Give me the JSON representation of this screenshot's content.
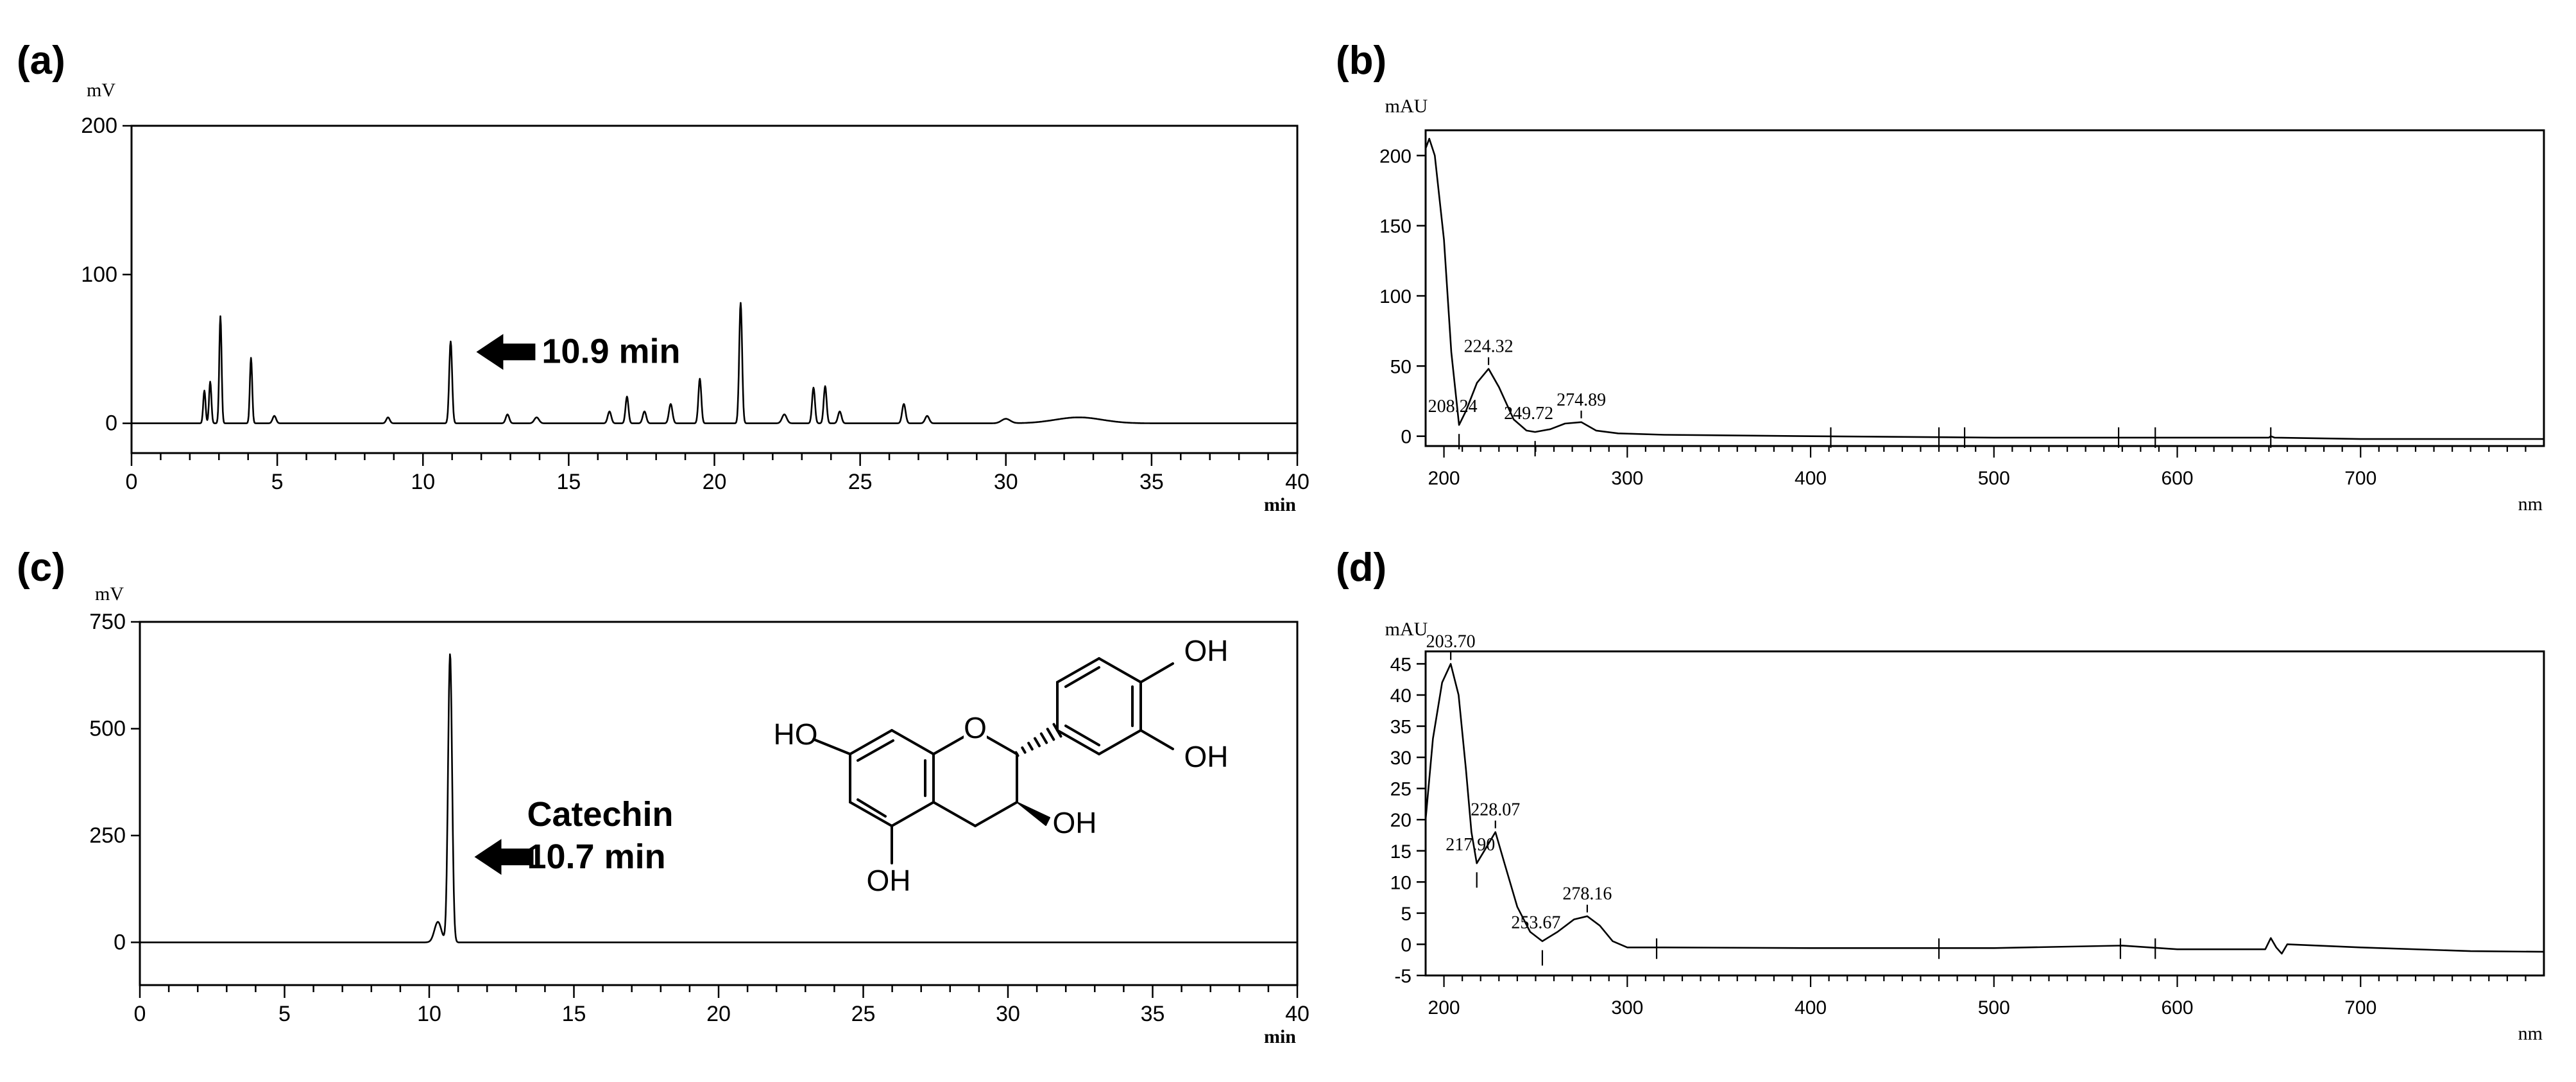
{
  "panels": [
    {
      "id": "a",
      "label": "(a)",
      "type": "line",
      "xlabel": "min",
      "ylabel": "mV",
      "xlim": [
        0,
        40
      ],
      "ylim": [
        -20,
        200
      ],
      "xticks": [
        0,
        5,
        10,
        15,
        20,
        25,
        30,
        35,
        40
      ],
      "yticks": [
        0,
        100,
        200
      ],
      "baseline": 0,
      "peaks": [
        {
          "x": 2.5,
          "y": 22,
          "w": 0.04
        },
        {
          "x": 2.7,
          "y": 28,
          "w": 0.04
        },
        {
          "x": 3.05,
          "y": 72,
          "w": 0.04
        },
        {
          "x": 4.1,
          "y": 44,
          "w": 0.04
        },
        {
          "x": 4.9,
          "y": 5,
          "w": 0.06
        },
        {
          "x": 8.8,
          "y": 4,
          "w": 0.06
        },
        {
          "x": 10.95,
          "y": 55,
          "w": 0.05
        },
        {
          "x": 12.9,
          "y": 6,
          "w": 0.06
        },
        {
          "x": 13.9,
          "y": 4,
          "w": 0.08
        },
        {
          "x": 16.4,
          "y": 8,
          "w": 0.06
        },
        {
          "x": 17.0,
          "y": 18,
          "w": 0.05
        },
        {
          "x": 17.6,
          "y": 8,
          "w": 0.06
        },
        {
          "x": 18.5,
          "y": 13,
          "w": 0.06
        },
        {
          "x": 19.5,
          "y": 30,
          "w": 0.05
        },
        {
          "x": 20.9,
          "y": 81,
          "w": 0.05
        },
        {
          "x": 22.4,
          "y": 6,
          "w": 0.08
        },
        {
          "x": 23.4,
          "y": 24,
          "w": 0.05
        },
        {
          "x": 23.8,
          "y": 25,
          "w": 0.05
        },
        {
          "x": 24.3,
          "y": 8,
          "w": 0.06
        },
        {
          "x": 26.5,
          "y": 13,
          "w": 0.06
        },
        {
          "x": 27.3,
          "y": 5,
          "w": 0.07
        },
        {
          "x": 30.0,
          "y": 3,
          "w": 0.15
        },
        {
          "x": 32.5,
          "y": 4,
          "w": 0.8
        }
      ],
      "annotation": {
        "text": "10.9 min",
        "x": 10.95,
        "y": 48
      }
    },
    {
      "id": "b",
      "label": "(b)",
      "type": "line",
      "xlabel": "nm",
      "ylabel": "mAU",
      "xlim": [
        190,
        800
      ],
      "ylim": [
        -7,
        218
      ],
      "xticks": [
        200,
        300,
        400,
        500,
        600,
        700
      ],
      "yticks": [
        0,
        50,
        100,
        150,
        200
      ],
      "points": [
        [
          190,
          205
        ],
        [
          192,
          212
        ],
        [
          195,
          200
        ],
        [
          200,
          140
        ],
        [
          204,
          60
        ],
        [
          208.24,
          8
        ],
        [
          212,
          18
        ],
        [
          218,
          38
        ],
        [
          224.32,
          48
        ],
        [
          230,
          35
        ],
        [
          238,
          12
        ],
        [
          245,
          4
        ],
        [
          249.72,
          3
        ],
        [
          258,
          5
        ],
        [
          266,
          9
        ],
        [
          274.89,
          10
        ],
        [
          283,
          4
        ],
        [
          295,
          2
        ],
        [
          320,
          1
        ],
        [
          400,
          0
        ],
        [
          500,
          -1
        ],
        [
          600,
          -1
        ],
        [
          650,
          -1
        ],
        [
          651,
          0
        ],
        [
          653,
          -1
        ],
        [
          700,
          -2
        ],
        [
          800,
          -2
        ]
      ],
      "peak_labels": [
        {
          "x": 208.24,
          "y": 8,
          "text": "208.24"
        },
        {
          "x": 224.32,
          "y": 48,
          "text": "224.32"
        },
        {
          "x": 249.72,
          "y": 3,
          "text": "249.72"
        },
        {
          "x": 274.89,
          "y": 10,
          "text": "274.89"
        }
      ],
      "baseline_ticks": [
        411,
        470,
        484,
        568,
        588,
        651
      ]
    },
    {
      "id": "c",
      "label": "(c)",
      "type": "line",
      "xlabel": "min",
      "ylabel": "mV",
      "xlim": [
        0,
        40
      ],
      "ylim": [
        -100,
        750
      ],
      "xticks": [
        0,
        5,
        10,
        15,
        20,
        25,
        30,
        35,
        40
      ],
      "yticks": [
        0,
        250,
        500,
        750
      ],
      "baseline": 0,
      "peaks": [
        {
          "x": 10.3,
          "y": 48,
          "w": 0.12
        },
        {
          "x": 10.72,
          "y": 675,
          "w": 0.07
        }
      ],
      "annotation": {
        "text_line1": "Catechin",
        "text_line2": "10.7 min",
        "x": 10.72,
        "y": 200
      },
      "structure_labels": [
        "HO",
        "OH",
        "OH",
        "OH",
        "OH",
        "O"
      ]
    },
    {
      "id": "d",
      "label": "(d)",
      "type": "line",
      "xlabel": "nm",
      "ylabel": "mAU",
      "xlim": [
        190,
        800
      ],
      "ylim": [
        -5,
        47
      ],
      "xticks": [
        200,
        300,
        400,
        500,
        600,
        700
      ],
      "yticks": [
        -5,
        0,
        5,
        10,
        15,
        20,
        25,
        30,
        35,
        40,
        45
      ],
      "points": [
        [
          190,
          20
        ],
        [
          194,
          33
        ],
        [
          199,
          42
        ],
        [
          203.7,
          45
        ],
        [
          208,
          40
        ],
        [
          212,
          28
        ],
        [
          215,
          18
        ],
        [
          217.9,
          13
        ],
        [
          222,
          15
        ],
        [
          228.07,
          18
        ],
        [
          233,
          13
        ],
        [
          240,
          6
        ],
        [
          247,
          2
        ],
        [
          253.67,
          0.5
        ],
        [
          262,
          2
        ],
        [
          271,
          4
        ],
        [
          278.16,
          4.5
        ],
        [
          285,
          3
        ],
        [
          292,
          0.5
        ],
        [
          300,
          -0.5
        ],
        [
          320,
          -0.5
        ],
        [
          400,
          -0.6
        ],
        [
          500,
          -0.6
        ],
        [
          570,
          -0.2
        ],
        [
          600,
          -0.8
        ],
        [
          648,
          -0.8
        ],
        [
          651,
          1
        ],
        [
          654,
          -0.5
        ],
        [
          657,
          -1.5
        ],
        [
          660,
          0
        ],
        [
          700,
          -0.5
        ],
        [
          760,
          -1.1
        ],
        [
          800,
          -1.2
        ]
      ],
      "peak_labels": [
        {
          "x": 203.7,
          "y": 45,
          "text": "203.70"
        },
        {
          "x": 217.9,
          "y": 13,
          "text": "217.90"
        },
        {
          "x": 228.07,
          "y": 18,
          "text": "228.07"
        },
        {
          "x": 253.67,
          "y": 0.5,
          "text": "253.67"
        },
        {
          "x": 278.16,
          "y": 4.5,
          "text": "278.16"
        }
      ],
      "baseline_ticks": [
        316,
        470,
        569,
        588
      ]
    }
  ]
}
